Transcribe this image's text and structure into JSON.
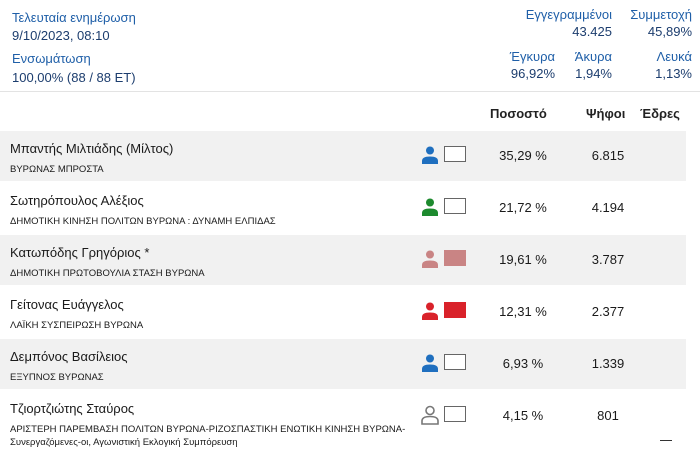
{
  "header": {
    "last_update_label": "Τελευταία ενημέρωση",
    "last_update_value": "9/10/2023, 08:10",
    "integration_label": "Ενσωμάτωση",
    "integration_value": "100,00% (88 / 88 ΕΤ)",
    "registered_label": "Εγγεγραμμένοι",
    "registered_value": "43.425",
    "turnout_label": "Συμμετοχή",
    "turnout_value": "45,89%",
    "valid_label": "Έγκυρα",
    "valid_value": "96,92%",
    "invalid_label": "Άκυρα",
    "invalid_value": "1,94%",
    "blank_label": "Λευκά",
    "blank_value": "1,13%"
  },
  "columns": {
    "percent": "Ποσοστό",
    "votes": "Ψήφοι",
    "seats": "Έδρες"
  },
  "candidates": [
    {
      "name": "Μπαντής Μιλτιάδης (Μίλτος)",
      "party": "ΒΥΡΩΝΑΣ ΜΠΡΟΣΤΑ",
      "party2": "",
      "percent": "35,29 %",
      "votes": "6.815",
      "icon": "person-icon",
      "color": "#1f6fbf",
      "square": "empty"
    },
    {
      "name": "Σωτηρόπουλος Αλέξιος",
      "party": "ΔΗΜΟΤΙΚΗ ΚΙΝΗΣΗ ΠΟΛΙΤΩΝ ΒΥΡΩΝΑ : ΔΥΝΑΜΗ ΕΛΠΙΔΑΣ",
      "party2": "",
      "percent": "21,72 %",
      "votes": "4.194",
      "icon": "person-icon",
      "color": "#1d8a2e",
      "square": "empty"
    },
    {
      "name": "Κατωπόδης Γρηγόριος *",
      "party": "ΔΗΜΟΤΙΚΗ ΠΡΩΤΟΒΟΥΛΙΑ ΣΤΑΣΗ ΒΥΡΩΝΑ",
      "party2": "",
      "percent": "19,61 %",
      "votes": "3.787",
      "icon": "person-icon",
      "color": "#c98484",
      "square": "#c98484"
    },
    {
      "name": "Γείτονας Ευάγγελος",
      "party": "ΛΑΪΚΗ ΣΥΣΠΕΙΡΩΣΗ ΒΥΡΩΝΑ",
      "party2": "",
      "percent": "12,31 %",
      "votes": "2.377",
      "icon": "person-icon",
      "color": "#d9222a",
      "square": "#d9222a"
    },
    {
      "name": "Δεμπόνος Βασίλειος",
      "party": "ΕΞΥΠΝΟΣ ΒΥΡΩΝΑΣ",
      "party2": "",
      "percent": "6,93 %",
      "votes": "1.339",
      "icon": "person-icon",
      "color": "#1f6fbf",
      "square": "empty"
    },
    {
      "name": "Τζιορτζιώτης Σταύρος",
      "party": "ΑΡΙΣΤΕΡΗ ΠΑΡΕΜΒΑΣΗ ΠΟΛΙΤΩΝ ΒΥΡΩΝΑ-ΡΙΖΟΣΠΑΣΤΙΚΗ ΕΝΩΤΙΚΗ ΚΙΝΗΣΗ ΒΥΡΩΝΑ-",
      "party2": "Συνεργαζόμενες-οι, Αγωνιστική Εκλογική Συμπόρευση",
      "percent": "4,15 %",
      "votes": "801",
      "icon": "person-outline-icon",
      "color": "#777777",
      "square": "empty"
    }
  ]
}
